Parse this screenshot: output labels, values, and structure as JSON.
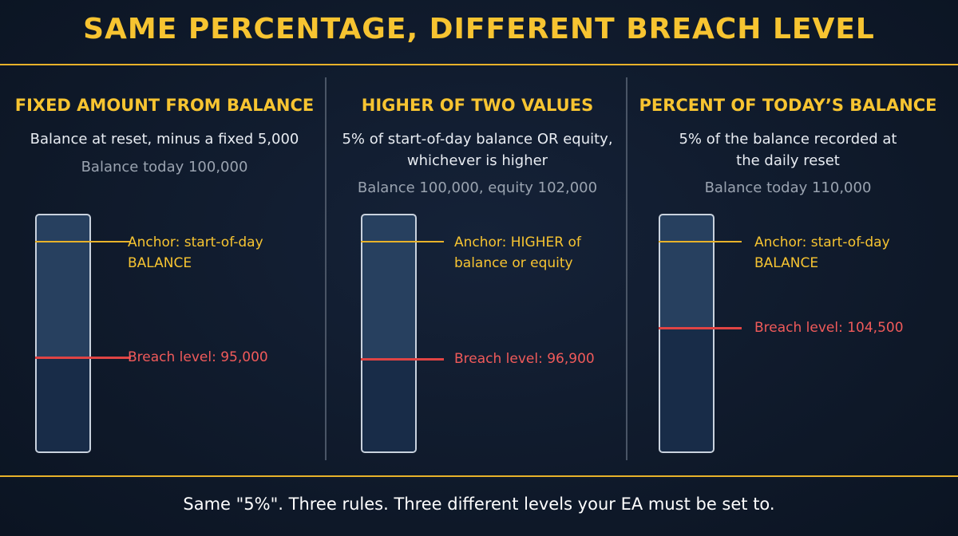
{
  "title": "SAME PERCENTAGE, DIFFERENT BREACH LEVEL",
  "panels": [
    {
      "heading": "FIXED AMOUNT FROM BALANCE",
      "description": "Balance at reset, minus a fixed 5,000",
      "note": "Balance today 100,000",
      "anchor_label": "Anchor: start-of-day BALANCE",
      "breach_label": "Breach level: 95,000"
    },
    {
      "heading": "HIGHER OF TWO VALUES",
      "description": "5% of start-of-day balance OR equity,\nwhichever is higher",
      "note": "Balance 100,000, equity 102,000",
      "anchor_label": "Anchor: HIGHER of\nbalance or equity",
      "breach_label": "Breach level: 96,900"
    },
    {
      "heading": "PERCENT OF TODAY’S BALANCE",
      "description": "5% of the balance recorded at\nthe daily reset",
      "note": "Balance today 110,000",
      "anchor_label": "Anchor: start-of-day BALANCE",
      "breach_label": "Breach level: 104,500"
    }
  ],
  "footer": "Same \"5%\". Three rules. Three different levels your EA must be set to.",
  "colors": {
    "accent": "#f7c431",
    "breach": "#e04444",
    "background": "#0f1a2a"
  }
}
